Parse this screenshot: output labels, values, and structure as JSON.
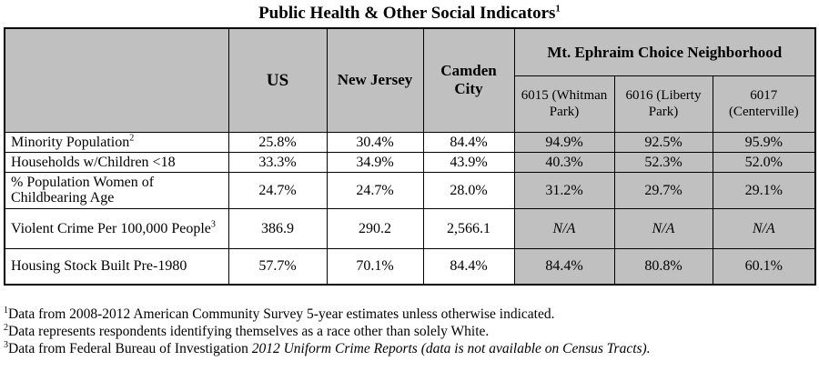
{
  "title": "Public Health & Other Social Indicators",
  "title_sup": "1",
  "header": {
    "us": "US",
    "nj": "New Jersey",
    "camden": "Camden City",
    "group": "Mt. Ephraim Choice Neighborhood",
    "tract1": "6015 (Whitman Park)",
    "tract2": "6016 (Liberty Park)",
    "tract3": "6017 (Centerville)"
  },
  "rows": [
    {
      "label": "Minority Population",
      "sup": "2",
      "values": [
        "25.8%",
        "30.4%",
        "84.4%",
        "94.9%",
        "92.5%",
        "95.9%"
      ]
    },
    {
      "label": "Households w/Children <18",
      "sup": "",
      "values": [
        "33.3%",
        "34.9%",
        "43.9%",
        "40.3%",
        "52.3%",
        "52.0%"
      ]
    },
    {
      "label": "% Population Women of Childbearing Age",
      "sup": "",
      "values": [
        "24.7%",
        "24.7%",
        "28.0%",
        "31.2%",
        "29.7%",
        "29.1%"
      ]
    },
    {
      "label": "Violent Crime Per 100,000 People",
      "sup": "3",
      "values": [
        "386.9",
        "290.2",
        "2,566.1",
        "N/A",
        "N/A",
        "N/A"
      ]
    },
    {
      "label": "Housing Stock Built Pre-1980",
      "sup": "",
      "values": [
        "57.7%",
        "70.1%",
        "84.4%",
        "84.4%",
        "80.8%",
        "60.1%"
      ]
    }
  ],
  "notes": [
    {
      "sup": "1",
      "text": "Data from 2008-2012 American Community Survey 5-year estimates unless otherwise indicated.",
      "italic": ""
    },
    {
      "sup": "2",
      "text": "Data represents respondents identifying themselves as a race other than solely White.",
      "italic": ""
    },
    {
      "sup": "3",
      "text": "Data from Federal Bureau of Investigation ",
      "italic": "2012 Uniform Crime Reports (data is not available on Census Tracts)."
    }
  ]
}
